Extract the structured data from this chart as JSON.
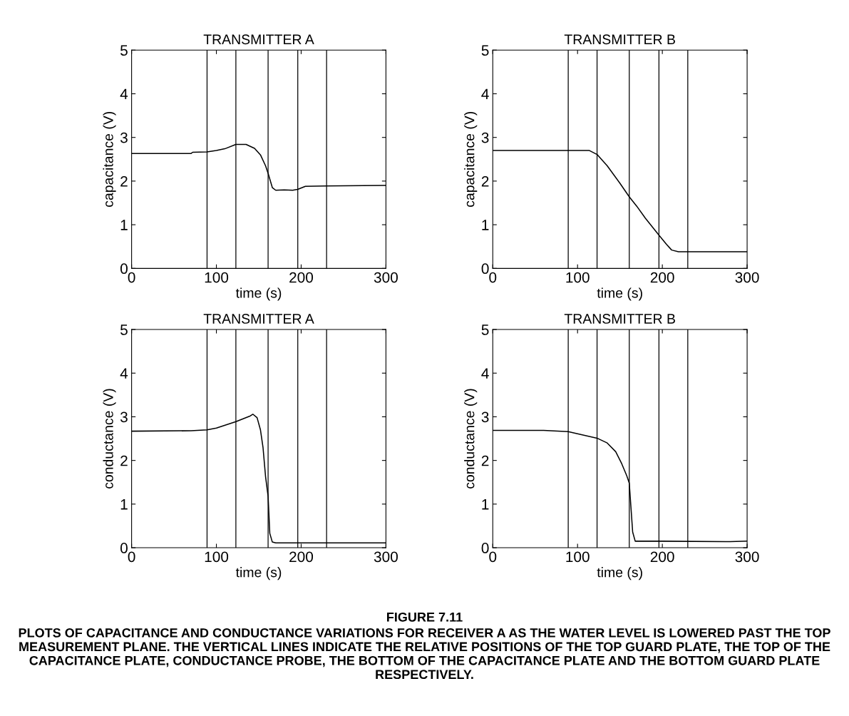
{
  "chart_data": [
    {
      "type": "line",
      "title": "TRANSMITTER A",
      "xlabel": "time (s)",
      "ylabel": "capacitance (V)",
      "xlim": [
        0,
        300
      ],
      "ylim": [
        0,
        5
      ],
      "xticks": [
        0,
        100,
        200,
        300
      ],
      "yticks": [
        0,
        1,
        2,
        3,
        4,
        5
      ],
      "grid": false,
      "legend": false,
      "x": [
        0,
        70,
        72,
        89,
        100,
        110,
        123,
        135,
        145,
        152,
        158,
        161,
        166,
        170,
        180,
        190,
        196,
        205,
        230,
        300
      ],
      "series": [
        {
          "color": "#000000",
          "values": [
            2.63,
            2.63,
            2.66,
            2.67,
            2.7,
            2.74,
            2.84,
            2.84,
            2.75,
            2.6,
            2.35,
            2.18,
            1.85,
            1.79,
            1.8,
            1.79,
            1.81,
            1.88,
            1.89,
            1.9
          ]
        }
      ],
      "ref_lines": [
        {
          "axis": "x",
          "value": 89,
          "color": "#000000"
        },
        {
          "axis": "x",
          "value": 123,
          "color": "#000000"
        },
        {
          "axis": "x",
          "value": 161,
          "color": "#000000"
        },
        {
          "axis": "x",
          "value": 196,
          "color": "#000000"
        },
        {
          "axis": "x",
          "value": 230,
          "color": "#000000"
        }
      ]
    },
    {
      "type": "line",
      "title": "TRANSMITTER B",
      "xlabel": "time (s)",
      "ylabel": "capacitance (V)",
      "xlim": [
        0,
        300
      ],
      "ylim": [
        0,
        5
      ],
      "xticks": [
        0,
        100,
        200,
        300
      ],
      "yticks": [
        0,
        1,
        2,
        3,
        4,
        5
      ],
      "grid": false,
      "legend": false,
      "x": [
        0,
        114,
        123,
        135,
        150,
        161,
        170,
        180,
        196,
        205,
        211,
        219,
        300
      ],
      "series": [
        {
          "color": "#000000",
          "values": [
            2.7,
            2.7,
            2.61,
            2.35,
            1.95,
            1.64,
            1.42,
            1.15,
            0.76,
            0.55,
            0.42,
            0.38,
            0.38
          ]
        }
      ],
      "ref_lines": [
        {
          "axis": "x",
          "value": 89,
          "color": "#000000"
        },
        {
          "axis": "x",
          "value": 123,
          "color": "#000000"
        },
        {
          "axis": "x",
          "value": 161,
          "color": "#000000"
        },
        {
          "axis": "x",
          "value": 196,
          "color": "#000000"
        },
        {
          "axis": "x",
          "value": 230,
          "color": "#000000"
        }
      ]
    },
    {
      "type": "line",
      "title": "TRANSMITTER A",
      "xlabel": "time (s)",
      "ylabel": "conductance (V)",
      "xlim": [
        0,
        300
      ],
      "ylim": [
        0,
        5
      ],
      "xticks": [
        0,
        100,
        200,
        300
      ],
      "yticks": [
        0,
        1,
        2,
        3,
        4,
        5
      ],
      "grid": false,
      "legend": false,
      "x": [
        0,
        70,
        89,
        100,
        123,
        140,
        143,
        148,
        152,
        155,
        158,
        161,
        163,
        166,
        170,
        300
      ],
      "series": [
        {
          "color": "#000000",
          "values": [
            2.67,
            2.68,
            2.7,
            2.74,
            2.89,
            3.02,
            3.06,
            2.98,
            2.7,
            2.3,
            1.63,
            1.18,
            0.33,
            0.13,
            0.11,
            0.11
          ]
        }
      ],
      "ref_lines": [
        {
          "axis": "x",
          "value": 89,
          "color": "#000000"
        },
        {
          "axis": "x",
          "value": 123,
          "color": "#000000"
        },
        {
          "axis": "x",
          "value": 161,
          "color": "#000000"
        },
        {
          "axis": "x",
          "value": 196,
          "color": "#000000"
        },
        {
          "axis": "x",
          "value": 230,
          "color": "#000000"
        }
      ]
    },
    {
      "type": "line",
      "title": "TRANSMITTER B",
      "xlabel": "time (s)",
      "ylabel": "conductance (V)",
      "xlim": [
        0,
        300
      ],
      "ylim": [
        0,
        5
      ],
      "xticks": [
        0,
        100,
        200,
        300
      ],
      "yticks": [
        0,
        1,
        2,
        3,
        4,
        5
      ],
      "grid": false,
      "legend": false,
      "x": [
        0,
        60,
        89,
        123,
        135,
        145,
        152,
        158,
        161,
        163,
        165,
        168,
        200,
        280,
        300
      ],
      "series": [
        {
          "color": "#000000",
          "values": [
            2.69,
            2.69,
            2.66,
            2.51,
            2.4,
            2.2,
            1.93,
            1.65,
            1.48,
            0.92,
            0.36,
            0.15,
            0.15,
            0.14,
            0.15
          ]
        }
      ],
      "ref_lines": [
        {
          "axis": "x",
          "value": 89,
          "color": "#000000"
        },
        {
          "axis": "x",
          "value": 123,
          "color": "#000000"
        },
        {
          "axis": "x",
          "value": 161,
          "color": "#000000"
        },
        {
          "axis": "x",
          "value": 196,
          "color": "#000000"
        },
        {
          "axis": "x",
          "value": 230,
          "color": "#000000"
        }
      ],
      "annotations": [
        "FIGURE 7.11",
        "PLOTS OF CAPACITANCE AND CONDUCTANCE VARIATIONS FOR RECEIVER A AS THE WATER LEVEL IS LOWERED PAST THE TOP MEASUREMENT PLANE. THE VERTICAL LINES INDICATE THE RELATIVE POSITIONS OF THE TOP GUARD PLATE, THE TOP OF THE CAPACITANCE PLATE, CONDUCTANCE PROBE, THE BOTTOM OF THE CAPACITANCE PLATE AND THE BOTTOM GUARD PLATE RESPECTIVELY."
      ]
    }
  ]
}
